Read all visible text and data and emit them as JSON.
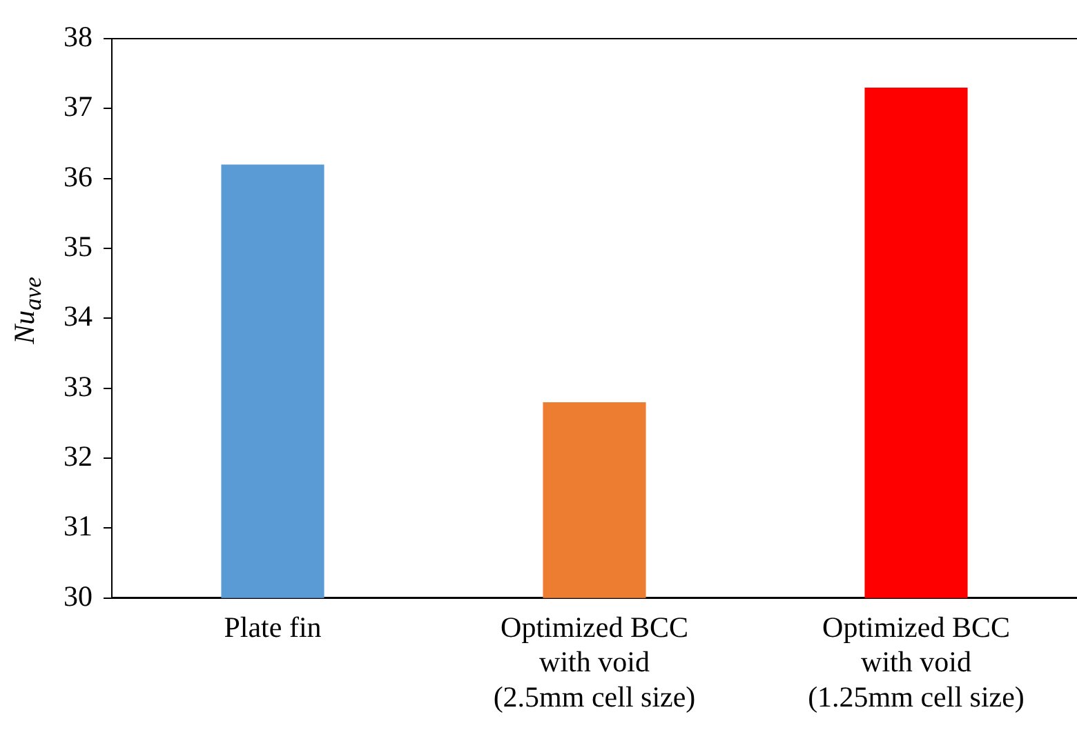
{
  "chart_data": {
    "type": "bar",
    "ylabel": "Nu$_{ave}$",
    "categories": [
      "Plate fin",
      "Optimized BCC\nwith void\n(2.5mm cell size)",
      "Optimized BCC\nwith void\n(1.25mm cell size)"
    ],
    "values": [
      36.2,
      32.8,
      37.3
    ],
    "colors": [
      "#5b9bd5",
      "#ed7d31",
      "#ff0000"
    ],
    "ylim": [
      30,
      38
    ],
    "yticks": [
      30,
      31,
      32,
      33,
      34,
      35,
      36,
      37,
      38
    ],
    "grid": false,
    "legend": false
  }
}
